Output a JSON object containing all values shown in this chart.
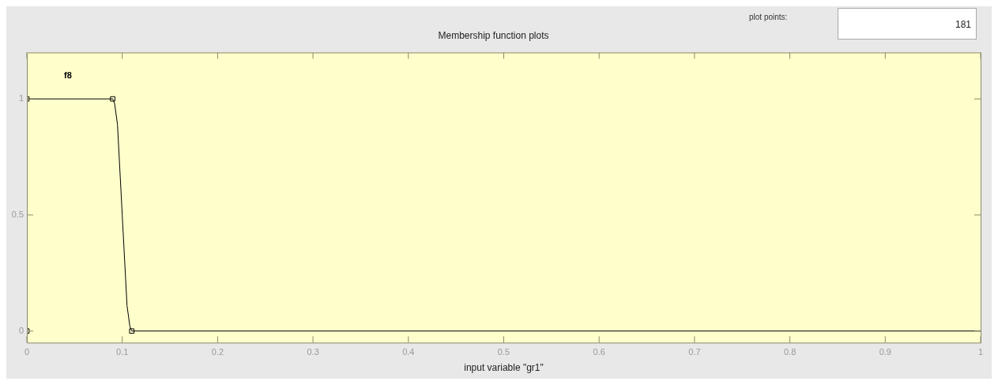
{
  "chart_data": {
    "type": "line",
    "title": "Membership function plots",
    "xlabel": "input variable \"gr1\"",
    "annotations": [
      "f8",
      "plot points:",
      "181"
    ],
    "xlim": [
      0,
      1
    ],
    "xticks": [
      0,
      0.1,
      0.2,
      0.3,
      0.4,
      0.5,
      0.6,
      0.7,
      0.8,
      0.9,
      1
    ],
    "ylim": [
      -0.05,
      1.2
    ],
    "yticks": [
      0,
      0.5,
      1
    ],
    "grid": false,
    "legend": false,
    "series": [
      {
        "color": "#000000",
        "marker": "none",
        "x": [
          0,
          0.09,
          0.092,
          0.095,
          0.1,
          0.105,
          0.108,
          0.11,
          1
        ],
        "values": [
          1,
          1,
          0.98,
          0.89,
          0.5,
          0.11,
          0.02,
          0,
          0
        ]
      },
      {
        "type": "scatter",
        "color": "#000000",
        "marker": "square",
        "x": [
          0,
          0.09,
          0.11,
          0
        ],
        "values": [
          1,
          1,
          0,
          0
        ]
      }
    ]
  }
}
